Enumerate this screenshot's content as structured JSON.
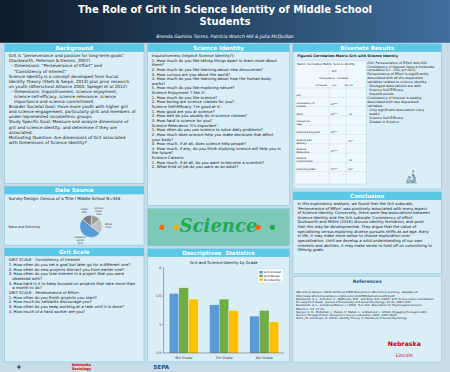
{
  "chart_data": [
    {
      "type": "text",
      "title": "The Role of Grit in Science Identity of Middle School\nStudents",
      "subtitle": "Brenda Gamino Torres, Patricia Wonch Hill & Julia McQuillan",
      "annotations": [
        "Background",
        "Grit is \"perseverance and passion for long-term goals\"\n(Duckworth, Peterson & Dennis, 2007)\n  - Dimensions: \"Perseverance of Effort\" and\n    \"Consistency of Interest\"\nScience Identity is a concept developed from Social\nIdentity Theory (Stets & Serpe, 2013) plus prior research\non youth (Afterschool Alliance 2003, Spiegel et al 2012)\n  - Dimensions: Inquisitiveness, science enjoyment,\n    science self-efficacy, science relevance, science\n    importance and science commitment.\n\nBroader Societal Goal: Have more youth with higher grit\nand science engagement, particularly girls and members of\nunder-represented racial/ethnic groups.\nStudy Specific Goal: Measure and analyze dimensions of\ngrit and science identity, and determine if they are\nassociated.\nMotivating Question: Are dimensions of Grit associated\nwith Dimensions of Science Identity?",
        "Date Source",
        "Survey Design: Census of a Title I Middle School N=446",
        "Grit Scale",
        "GRIT SCALE - Consistency of Interest\n1. How often do you set a goal but later go for a different one?\n2. How often do new projects distract you from earlier one?\n3. How often do you lose interest in a project that you were\n   obsessed with?\n4. How hard is it to keep focused on projects that take more than\n   a month to do?\n\nGRIT SCALE - Perseverance of Effort:\n1. How often do you finish projects you start?\n2. How much do setbacks discourage you?\n3. How often do you keep working at a task until it is done?\n4. How much of a hard worker are you?",
        "Science Identity",
        "Inquisitiveness (Implicit Science Identity?):\n1. How much do you like taking things apart to learn more about\nthem?\n2. How much do you like learning about new discoveries?\n3. How curious are you about the world?\n4. How much do you like learning about how the human body\nworks?\n5. How much do you like exploring nature?\n\nScience Enjoyment 'I like it':\n1. How much do you like science?\n2. How boring are science classes for you?\n\nScience Self-Efficacy 'I'm good at it':\n1. How good are you at science?\n2. How well do you usually do in science classes?\n3. How hard is science for you?\n\nScience Relevance 'It's important':\n1. How often do you use science to solve daily problems?\n2. How much does science help you make decisions that affect\nyour body?\n3. How much, if at all, does science help people?\n4. How much, if any, do you think studying science will help you in\nthe future?\n\nScience Careers:\n1. How much, if at all, do you want to become a scientist?\n2. What kind of job do you want as an adult?",
        "Science",
        "Descriptives  Statistics",
        "Bivariate Results",
        "Figure1 Correlation Matrix Grit with Science Identity",
        "Grit- Perseverance of Effort and Grit-\nConsistency of Interest have a moderate\ncorrelation (r= .320, p<.001)\n\nPerseverance of Effort is significantly\nassociated with all the dependent\nvariables related to science identity.\n  Strongest associations are with\n  Science Self-Efficacy\n  Inquisitiveness\n\nConsistency of Interest is weakly\nassociated with two dependent\nvariables.\n  Only significant association (very\n  weak):\n  Science Self-Efficacy\n  Grades in Science",
        "🔬",
        "Conclusion",
        "In this exploratory analysis, we found that the Grit subscale,\n'Perseverance of Effort' was positively associated with every aspect\nof Science Identity. Conversely, there were few associations between\nScience Identity and the Grit subscale 'Consistency of effort'.\nDuckworth and Milkle (2016) discuss identity formation, and posit\nthat this may be developmental. They argue that the value of\nspecializing versus exploring diverse pursuits shifts as we age. Early\nin life, it may make more sense to choose exploration over\nspecialization. Until we develop a solid understanding of our own\ninterests and abilities, it may make sense to hold off on committing to\nlifelong goals.",
        "References",
        "Afterschool Alliance (2013) Defining STEM Outcomes in Afterschool Learning.  Available at\nhttp://www.afterschoolalliance.org/documents/STEM-Outcomes-2013.pdf\nDuckworth, A. L., Peterson, C., Matthews, M.D., and Kelly, D.R. (2007). Grit: Perseverance and Passion\nfor Long-Term Goals.  Journal of Personality and Social Psychology, 92 (6), 1087-1101.\nDuckworth, A. L., and Gross-Manos, J. (2014). True Grit. Association for Psychological Science\nObserver, Vol. 27 (4)\nSpiegel, A. N., McQuillan, J., Halpin, P., Matuk, L., & Diamond, J. (2013). Engaging Teenagers with\nScience Through Fiction. Research in science education, 43(6), 2355-2528.\nStets, J.E. and Serpe, R. (2013). Identity Theory. In Handbook of Social Psychology.",
        "Nebraska",
        "Lincoln",
        "✦",
        "Nebraska\nSociology",
        "SEPA"
      ]
    },
    {
      "type": "pie",
      "title": "Race and Ethnicity",
      "categories": [
        "Hispanic/\nLatino\n51%",
        "White\n21%",
        "African\nAmer.\n13%",
        "Other\n15%"
      ],
      "values": [
        51,
        21,
        13,
        15
      ],
      "colors": [
        "#5b9bd5",
        "#c0c0c0",
        "#a0a0a0",
        "#808080"
      ]
    },
    {
      "type": "bar",
      "title": "Grit and Science Identity by Grade",
      "categories": [
        "6th Grade",
        "7th Grade",
        "8th Grade"
      ],
      "series": [
        {
          "name": "Grit-Consist",
          "values": [
            3.55,
            3.35,
            3.15
          ],
          "color": "#5b9bd5"
        },
        {
          "name": "Grit-Persev",
          "values": [
            3.65,
            3.45,
            3.25
          ],
          "color": "#70ad47"
        },
        {
          "name": "Sci-Identity",
          "values": [
            3.45,
            3.25,
            3.05
          ],
          "color": "#ffc000"
        }
      ],
      "ylim": [
        2.5,
        4.0
      ],
      "yticks": [
        2.5,
        3,
        3.5,
        4
      ],
      "legend": "upper right"
    },
    {
      "type": "table",
      "title": "Table1. Correlation Matrix  Science identity",
      "annotations": [
        "Grit",
        "Perseverance   Consisten.",
        "of interest       r(p<           r(p<.19"
      ],
      "categories": [
        "Grit",
        "Consistency of\nInterest",
        "Effort",
        "Inquisitive-\nness",
        "Science Enjoyment",
        "Science Self\nEfficacy",
        "Science\nRelevance",
        "Science\nCommitment",
        "Science grades"
      ],
      "series": [
        {
          "values": [
            null,
            31,
            32,
            null,
            20,
            null,
            21,
            null,
            21
          ],
          "value_labels": [
            null,
            "31***",
            "32***",
            null,
            "20***",
            null,
            "21***",
            null,
            "21***"
          ]
        },
        {
          "values": [
            null,
            null,
            20,
            null,
            null,
            21,
            null,
            20,
            20
          ],
          "value_labels": [
            null,
            null,
            "20",
            null,
            null,
            "21*",
            null,
            "20",
            "20*"
          ]
        }
      ]
    }
  ]
}
